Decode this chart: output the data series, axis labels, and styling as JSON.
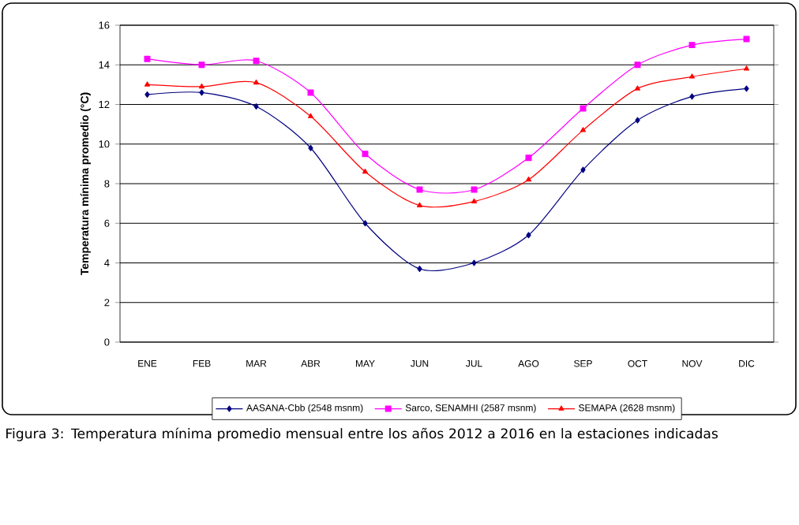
{
  "chart_data": {
    "type": "line",
    "ylabel": "Temperatura mínima promedio (°C)",
    "categories": [
      "ENE",
      "FEB",
      "MAR",
      "ABR",
      "MAY",
      "JUN",
      "JUL",
      "AGO",
      "SEP",
      "OCT",
      "NOV",
      "DIC"
    ],
    "series": [
      {
        "name": "AASANA-Cbb (2548 msnm)",
        "color": "#000080",
        "marker": "diamond",
        "values": [
          12.5,
          12.6,
          11.9,
          9.8,
          6.0,
          3.7,
          4.0,
          5.4,
          8.7,
          11.2,
          12.4,
          12.8
        ]
      },
      {
        "name": "Sarco, SENAMHI (2587 msnm)",
        "color": "#ff00ff",
        "marker": "square",
        "values": [
          14.3,
          14.0,
          14.2,
          12.6,
          9.5,
          7.7,
          7.7,
          9.3,
          11.8,
          14.0,
          15.0,
          15.3
        ]
      },
      {
        "name": "SEMAPA (2628 msnm)",
        "color": "#ff0000",
        "marker": "triangle",
        "values": [
          13.0,
          12.9,
          13.1,
          11.4,
          8.6,
          6.9,
          7.1,
          8.2,
          10.7,
          12.8,
          13.4,
          13.8
        ]
      }
    ],
    "ylim": [
      0,
      16
    ],
    "yticks": [
      0,
      2,
      4,
      6,
      8,
      10,
      12,
      14,
      16
    ],
    "grid": "y",
    "legend": "bottom",
    "annotations": [
      "Figura 3: Temperatura mínima promedio mensual entre los años 2012 a 2016 en la estaciones indicadas"
    ]
  }
}
